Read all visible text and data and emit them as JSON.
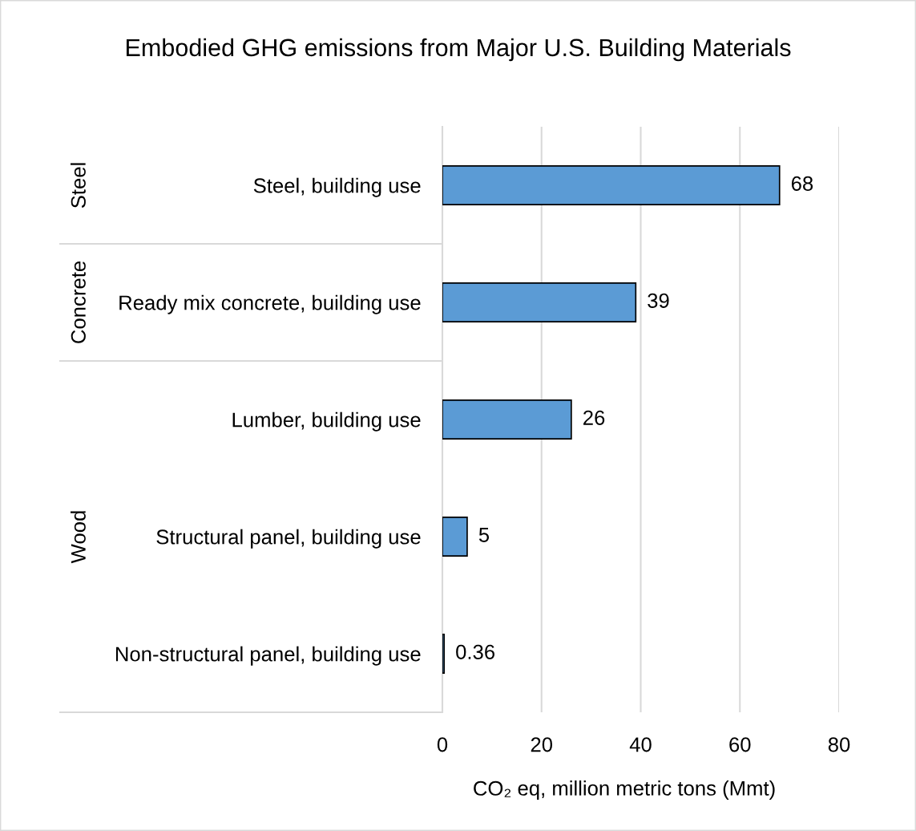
{
  "chart_data": {
    "type": "bar",
    "orientation": "horizontal",
    "title": "Embodied GHG emissions from Major U.S. Building Materials",
    "xlabel": "CO₂ eq, million metric tons (Mmt)",
    "categories": [
      "Steel, building use",
      "Ready mix concrete, building use",
      "Lumber, building use",
      "Structural panel, building use",
      "Non-structural panel, building use"
    ],
    "values": [
      68,
      39,
      26,
      5,
      0.36
    ],
    "color": "#5b9bd5",
    "xlim": [
      0,
      80
    ],
    "xticks": [
      0,
      20,
      40,
      60,
      80
    ],
    "grid": "x",
    "data_labels": true,
    "annotations": [
      "Steel",
      "Concrete",
      "Wood"
    ]
  }
}
